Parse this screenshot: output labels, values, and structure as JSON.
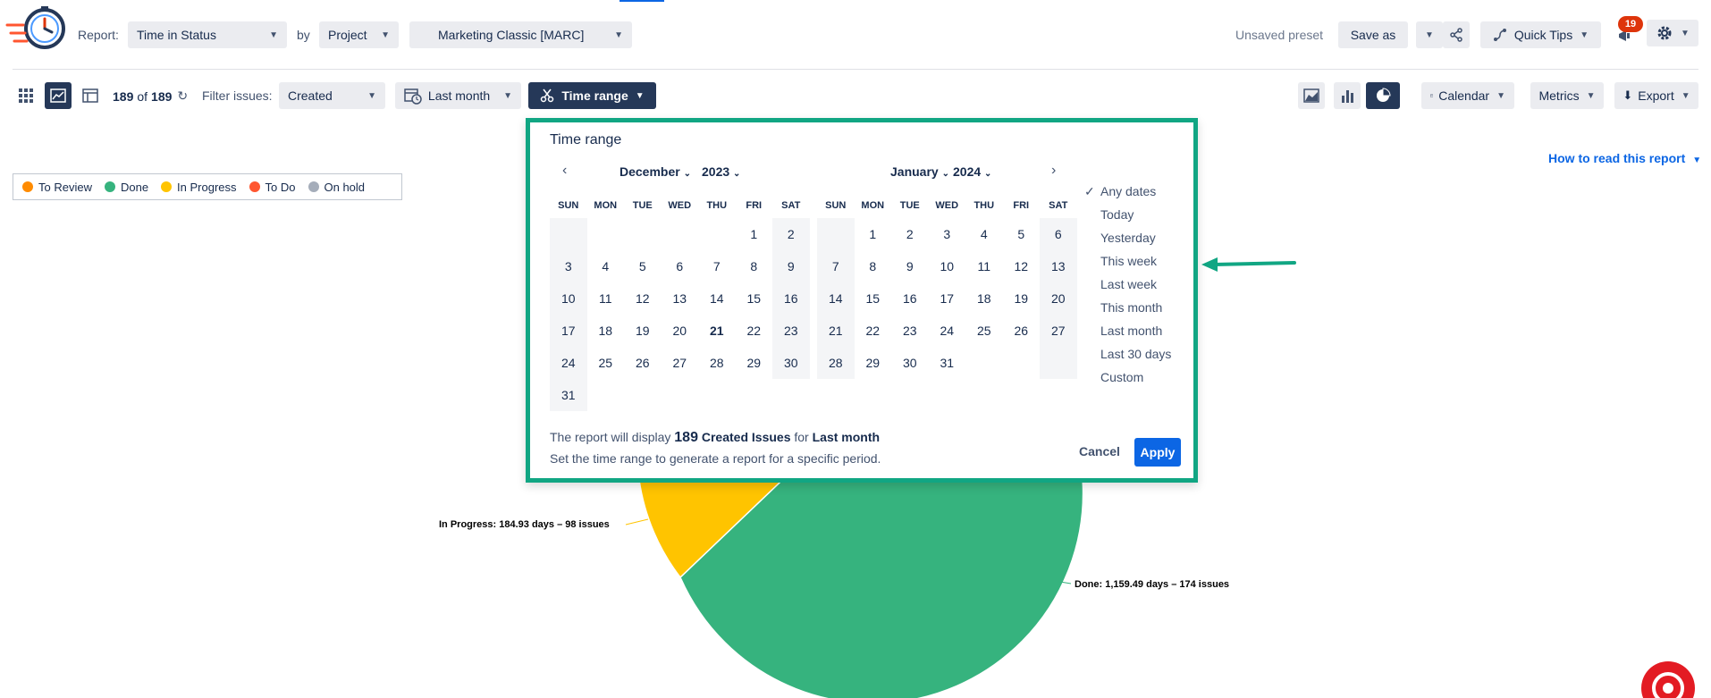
{
  "header": {
    "report_label": "Report:",
    "report_value": "Time in Status",
    "by_label": "by",
    "by_value": "Project",
    "project_value": "Marketing Classic [MARC]",
    "unsaved": "Unsaved preset",
    "save_as": "Save as",
    "quick_tips": "Quick Tips",
    "notifications_count": "19"
  },
  "toolbar": {
    "count_shown": "189",
    "count_of": "of",
    "count_total": "189",
    "filter_label": "Filter issues:",
    "filter_value": "Created",
    "period_value": "Last month",
    "time_range": "Time range",
    "calendar": "Calendar",
    "metrics": "Metrics",
    "export": "Export"
  },
  "legend": [
    {
      "label": "To Review",
      "color": "#ff8b00"
    },
    {
      "label": "Done",
      "color": "#36b37e"
    },
    {
      "label": "In Progress",
      "color": "#ffc400"
    },
    {
      "label": "To Do",
      "color": "#ff5630"
    },
    {
      "label": "On hold",
      "color": "#a5adba"
    }
  ],
  "how_to_read": "How to read this report",
  "chart_labels": {
    "in_progress": "In Progress: 184.93 days – 98 issues",
    "done": "Done: 1,159.49 days – 174 issues"
  },
  "popup": {
    "title": "Time range",
    "weekdays": [
      "SUN",
      "MON",
      "TUE",
      "WED",
      "THU",
      "FRI",
      "SAT"
    ],
    "left_month": "December",
    "left_year": "2023",
    "right_month": "January",
    "right_year": "2024",
    "left_days": [
      "",
      "",
      "",
      "",
      "",
      "1",
      "2",
      "3",
      "4",
      "5",
      "6",
      "7",
      "8",
      "9",
      "10",
      "11",
      "12",
      "13",
      "14",
      "15",
      "16",
      "17",
      "18",
      "19",
      "20",
      "21",
      "22",
      "23",
      "24",
      "25",
      "26",
      "27",
      "28",
      "29",
      "30",
      "31"
    ],
    "right_days": [
      "",
      "1",
      "2",
      "3",
      "4",
      "5",
      "6",
      "7",
      "8",
      "9",
      "10",
      "11",
      "12",
      "13",
      "14",
      "15",
      "16",
      "17",
      "18",
      "19",
      "20",
      "21",
      "22",
      "23",
      "24",
      "25",
      "26",
      "27",
      "28",
      "29",
      "30",
      "31",
      "",
      "",
      ""
    ],
    "today": "21",
    "quick_options": [
      "Any dates",
      "Today",
      "Yesterday",
      "This week",
      "Last week",
      "This month",
      "Last month",
      "Last 30 days",
      "Custom"
    ],
    "selected_option": "Any dates",
    "summary_prefix": "The report will display",
    "summary_count": "189",
    "summary_type": "Created Issues",
    "summary_for": "for",
    "summary_period": "Last month",
    "summary_note": "Set the time range to generate a report for a specific period.",
    "cancel": "Cancel",
    "apply": "Apply"
  }
}
